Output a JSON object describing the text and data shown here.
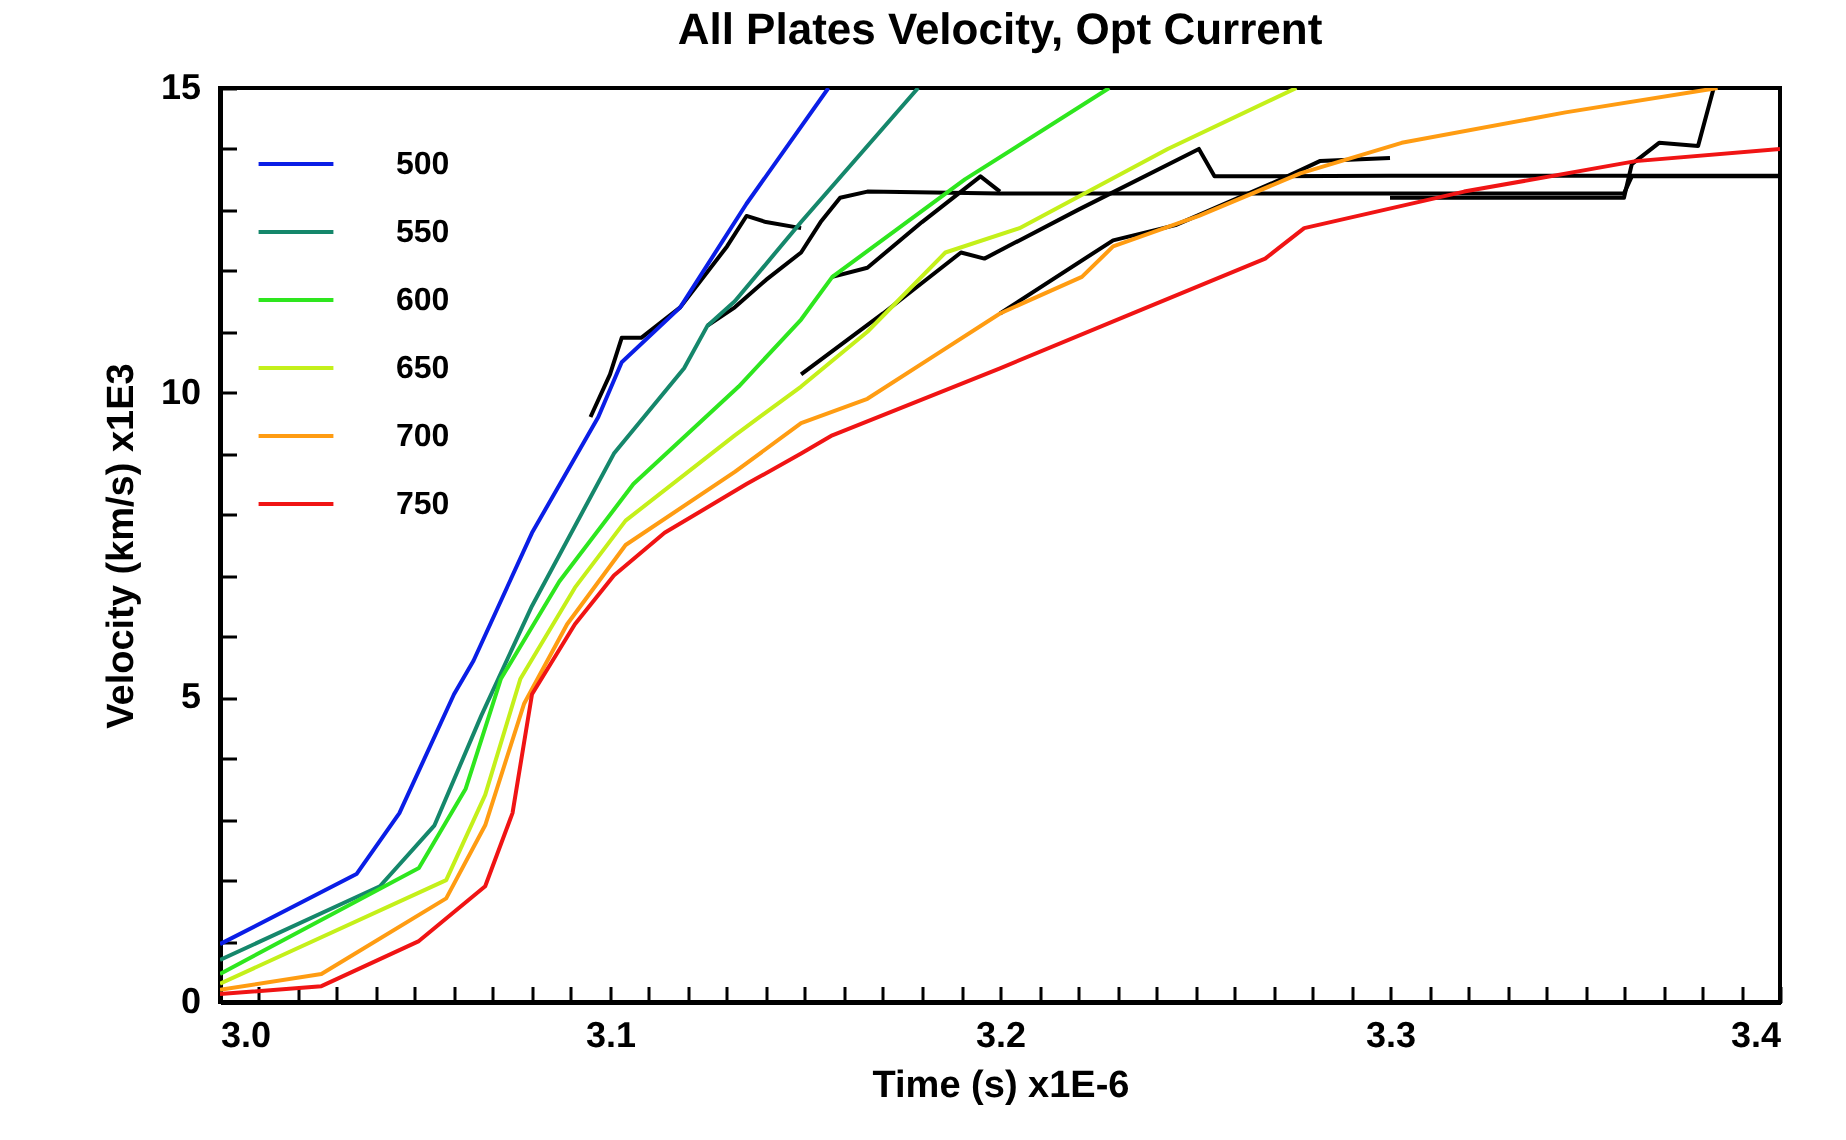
{
  "chart_data": {
    "type": "line",
    "title": "All Plates Velocity, Opt Current",
    "xlabel": "Time  (s) x1E-6",
    "ylabel": "Velocity  (km/s) x1E3",
    "xlim": [
      3.0,
      3.4
    ],
    "ylim": [
      0,
      15
    ],
    "xticks": [
      {
        "value": 3.0,
        "label": "3.0"
      },
      {
        "value": 3.01,
        "label": null
      },
      {
        "value": 3.02,
        "label": null
      },
      {
        "value": 3.03,
        "label": null
      },
      {
        "value": 3.04,
        "label": null
      },
      {
        "value": 3.05,
        "label": null
      },
      {
        "value": 3.06,
        "label": null
      },
      {
        "value": 3.07,
        "label": null
      },
      {
        "value": 3.08,
        "label": null
      },
      {
        "value": 3.09,
        "label": null
      },
      {
        "value": 3.1,
        "label": "3.1"
      },
      {
        "value": 3.11,
        "label": null
      },
      {
        "value": 3.12,
        "label": null
      },
      {
        "value": 3.13,
        "label": null
      },
      {
        "value": 3.14,
        "label": null
      },
      {
        "value": 3.15,
        "label": null
      },
      {
        "value": 3.16,
        "label": null
      },
      {
        "value": 3.17,
        "label": null
      },
      {
        "value": 3.18,
        "label": null
      },
      {
        "value": 3.19,
        "label": null
      },
      {
        "value": 3.2,
        "label": "3.2"
      },
      {
        "value": 3.21,
        "label": null
      },
      {
        "value": 3.22,
        "label": null
      },
      {
        "value": 3.23,
        "label": null
      },
      {
        "value": 3.24,
        "label": null
      },
      {
        "value": 3.25,
        "label": null
      },
      {
        "value": 3.26,
        "label": null
      },
      {
        "value": 3.27,
        "label": null
      },
      {
        "value": 3.28,
        "label": null
      },
      {
        "value": 3.29,
        "label": null
      },
      {
        "value": 3.3,
        "label": "3.3"
      },
      {
        "value": 3.31,
        "label": null
      },
      {
        "value": 3.32,
        "label": null
      },
      {
        "value": 3.33,
        "label": null
      },
      {
        "value": 3.34,
        "label": null
      },
      {
        "value": 3.35,
        "label": null
      },
      {
        "value": 3.36,
        "label": null
      },
      {
        "value": 3.37,
        "label": null
      },
      {
        "value": 3.38,
        "label": null
      },
      {
        "value": 3.39,
        "label": null
      },
      {
        "value": 3.4,
        "label": "3.4"
      }
    ],
    "yticks": [
      0,
      {
        "value": 1,
        "label": null
      },
      {
        "value": 2,
        "label": null
      },
      {
        "value": 3,
        "label": null
      },
      {
        "value": 4,
        "label": null
      },
      5,
      {
        "value": 6,
        "label": null
      },
      {
        "value": 7,
        "label": null
      },
      {
        "value": 8,
        "label": null
      },
      {
        "value": 9,
        "label": null
      },
      10,
      {
        "value": 11,
        "label": null
      },
      {
        "value": 12,
        "label": null
      },
      {
        "value": 13,
        "label": null
      },
      {
        "value": 14,
        "label": null
      },
      15
    ],
    "grid": false,
    "legend": "top left",
    "line_style": "solid",
    "marker": "none",
    "series": [
      {
        "color": "#000000",
        "x": [
          3.095,
          3.1,
          3.103,
          3.108,
          3.118,
          3.13,
          3.135,
          3.14,
          3.149
        ],
        "values": [
          9.6,
          10.3,
          10.9,
          10.9,
          11.4,
          12.4,
          12.9,
          12.8,
          12.7
        ]
      },
      {
        "color": "#000000",
        "x": [
          3.125,
          3.132,
          3.14,
          3.149,
          3.154,
          3.159,
          3.166,
          3.2,
          3.25,
          3.3,
          3.36,
          3.362,
          3.4
        ],
        "values": [
          11.1,
          11.4,
          11.85,
          12.3,
          12.8,
          13.2,
          13.3,
          13.27,
          13.27,
          13.27,
          13.27,
          13.55,
          13.55
        ]
      },
      {
        "color": "#000000",
        "x": [
          3.157,
          3.166,
          3.18,
          3.195,
          3.2
        ],
        "values": [
          11.9,
          12.05,
          12.8,
          13.55,
          13.3
        ]
      },
      {
        "color": "#000000",
        "x": [
          3.149,
          3.17,
          3.19,
          3.196,
          3.22,
          3.251,
          3.255,
          3.3,
          3.4
        ],
        "values": [
          10.3,
          11.3,
          12.3,
          12.2,
          13.0,
          14.0,
          13.55,
          13.56,
          13.56
        ]
      },
      {
        "color": "#000000",
        "x": [
          3.2,
          3.229,
          3.245,
          3.272,
          3.282,
          3.3
        ],
        "values": [
          11.3,
          12.5,
          12.75,
          13.5,
          13.8,
          13.85
        ]
      },
      {
        "color": "#000000",
        "x": [
          3.3,
          3.33,
          3.36,
          3.362,
          3.369,
          3.379,
          3.383
        ],
        "values": [
          13.2,
          13.2,
          13.2,
          13.75,
          14.1,
          14.05,
          15.0
        ]
      },
      {
        "name": "500",
        "color": "#0a1ee6",
        "x": [
          3.0,
          3.035,
          3.046,
          3.06,
          3.065,
          3.08,
          3.097,
          3.103,
          3.118,
          3.135,
          3.156
        ],
        "values": [
          0.95,
          2.1,
          3.1,
          5.05,
          5.6,
          7.7,
          9.6,
          10.5,
          11.4,
          13.1,
          15.0
        ]
      },
      {
        "name": "550",
        "color": "#15876b",
        "x": [
          3.0,
          3.041,
          3.055,
          3.067,
          3.08,
          3.101,
          3.119,
          3.125,
          3.132,
          3.149,
          3.179
        ],
        "values": [
          0.69,
          1.9,
          2.9,
          4.7,
          6.5,
          9.0,
          10.4,
          11.1,
          11.5,
          12.8,
          15.0
        ]
      },
      {
        "name": "600",
        "color": "#2ee61e",
        "x": [
          3.0,
          3.051,
          3.063,
          3.072,
          3.087,
          3.106,
          3.133,
          3.149,
          3.157,
          3.191,
          3.228
        ],
        "values": [
          0.46,
          2.2,
          3.5,
          5.3,
          6.9,
          8.5,
          10.1,
          11.2,
          11.9,
          13.5,
          15.0
        ]
      },
      {
        "name": "650",
        "color": "#c4f01a",
        "x": [
          3.0,
          3.058,
          3.068,
          3.077,
          3.091,
          3.104,
          3.132,
          3.149,
          3.166,
          3.186,
          3.205,
          3.243,
          3.276
        ],
        "values": [
          0.3,
          2.0,
          3.4,
          5.3,
          6.8,
          7.9,
          9.3,
          10.1,
          11.0,
          12.3,
          12.7,
          14.0,
          15.0
        ]
      },
      {
        "name": "700",
        "color": "#ff9c12",
        "x": [
          3.0,
          3.026,
          3.058,
          3.068,
          3.078,
          3.089,
          3.104,
          3.132,
          3.149,
          3.166,
          3.183,
          3.2,
          3.221,
          3.229,
          3.251,
          3.277,
          3.303,
          3.345,
          3.384
        ],
        "values": [
          0.2,
          0.46,
          1.7,
          2.9,
          4.9,
          6.2,
          7.5,
          8.7,
          9.5,
          9.9,
          10.6,
          11.3,
          11.9,
          12.4,
          12.9,
          13.6,
          14.1,
          14.6,
          15.0
        ]
      },
      {
        "name": "750",
        "color": "#f01414",
        "x": [
          3.0,
          3.026,
          3.051,
          3.068,
          3.075,
          3.08,
          3.091,
          3.101,
          3.114,
          3.135,
          3.149,
          3.157,
          3.2,
          3.234,
          3.268,
          3.278,
          3.319,
          3.363,
          3.4
        ],
        "values": [
          0.13,
          0.26,
          1.0,
          1.9,
          3.1,
          5.05,
          6.2,
          7.0,
          7.7,
          8.5,
          9.0,
          9.3,
          10.4,
          11.3,
          12.2,
          12.7,
          13.3,
          13.8,
          14.0
        ]
      }
    ]
  }
}
